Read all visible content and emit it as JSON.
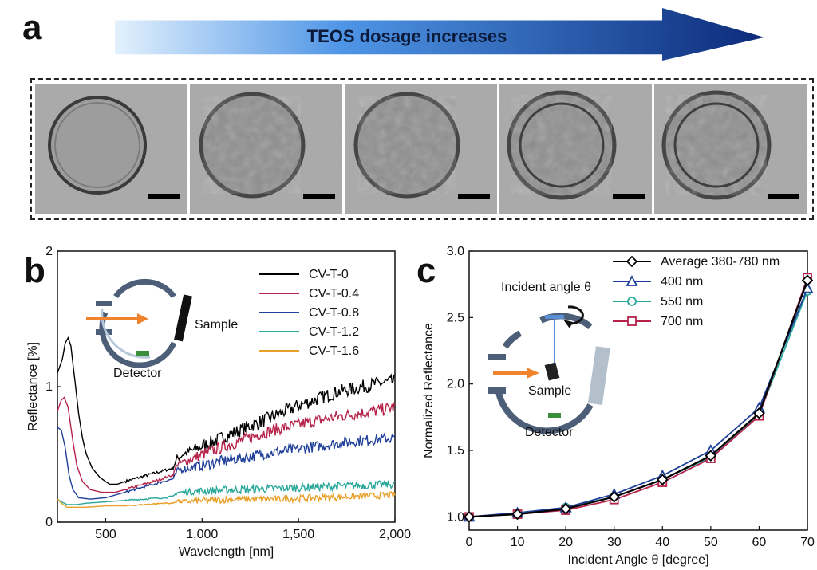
{
  "panel_a": {
    "letter": "a",
    "arrow_label": "TEOS dosage increases",
    "images": [
      {
        "name": "tem-image-cv-t-0",
        "texture": "smooth"
      },
      {
        "name": "tem-image-cv-t-0-4",
        "texture": "rough"
      },
      {
        "name": "tem-image-cv-t-0-8",
        "texture": "rough"
      },
      {
        "name": "tem-image-cv-t-1-2",
        "texture": "shell"
      },
      {
        "name": "tem-image-cv-t-1-6",
        "texture": "shell"
      }
    ]
  },
  "panel_b": {
    "letter": "b",
    "inset": {
      "sample_label": "Sample",
      "detector_label": "Detector"
    }
  },
  "panel_c": {
    "letter": "c",
    "inset": {
      "angle_label": "Incident angle θ",
      "sample_label": "Sample",
      "detector_label": "Detector"
    }
  },
  "chart_data": [
    {
      "id": "panel-b",
      "type": "line",
      "xlabel": "Wavelength [nm]",
      "ylabel": "Reflectance [%]",
      "xlim": [
        250,
        2000
      ],
      "ylim": [
        0,
        2
      ],
      "x_ticks": [
        500,
        1000,
        1500,
        2000
      ],
      "x_tick_labels": [
        "500",
        "1,000",
        "1,500",
        "2,000"
      ],
      "y_ticks": [
        0,
        1,
        2
      ],
      "y_tick_labels": [
        "0",
        "1",
        "2"
      ],
      "grid": false,
      "legend_position": "top-right",
      "series": [
        {
          "name": "CV-T-0",
          "color": "#000000",
          "points": [
            [
              250,
              1.1
            ],
            [
              275,
              1.2
            ],
            [
              290,
              1.32
            ],
            [
              305,
              1.36
            ],
            [
              320,
              1.3
            ],
            [
              340,
              1.05
            ],
            [
              360,
              0.8
            ],
            [
              380,
              0.62
            ],
            [
              400,
              0.5
            ],
            [
              430,
              0.4
            ],
            [
              470,
              0.33
            ],
            [
              520,
              0.28
            ],
            [
              560,
              0.28
            ],
            [
              600,
              0.3
            ],
            [
              700,
              0.34
            ],
            [
              800,
              0.38
            ],
            [
              850,
              0.4
            ],
            [
              870,
              0.47
            ],
            [
              900,
              0.5
            ],
            [
              1000,
              0.56
            ],
            [
              1100,
              0.62
            ],
            [
              1200,
              0.68
            ],
            [
              1300,
              0.74
            ],
            [
              1400,
              0.8
            ],
            [
              1500,
              0.86
            ],
            [
              1600,
              0.91
            ],
            [
              1700,
              0.96
            ],
            [
              1800,
              0.99
            ],
            [
              1900,
              1.02
            ],
            [
              2000,
              1.04
            ]
          ],
          "noise": 0.05
        },
        {
          "name": "CV-T-0.4",
          "color": "#b5234a",
          "points": [
            [
              250,
              0.82
            ],
            [
              270,
              0.9
            ],
            [
              285,
              0.92
            ],
            [
              305,
              0.85
            ],
            [
              330,
              0.6
            ],
            [
              350,
              0.42
            ],
            [
              380,
              0.3
            ],
            [
              420,
              0.24
            ],
            [
              480,
              0.22
            ],
            [
              550,
              0.22
            ],
            [
              650,
              0.26
            ],
            [
              750,
              0.3
            ],
            [
              850,
              0.35
            ],
            [
              870,
              0.43
            ],
            [
              900,
              0.44
            ],
            [
              1000,
              0.5
            ],
            [
              1100,
              0.55
            ],
            [
              1200,
              0.6
            ],
            [
              1300,
              0.65
            ],
            [
              1400,
              0.69
            ],
            [
              1500,
              0.72
            ],
            [
              1600,
              0.75
            ],
            [
              1700,
              0.78
            ],
            [
              1800,
              0.8
            ],
            [
              1900,
              0.82
            ],
            [
              2000,
              0.85
            ]
          ],
          "noise": 0.045
        },
        {
          "name": "CV-T-0.8",
          "color": "#1f3f99",
          "points": [
            [
              250,
              0.7
            ],
            [
              270,
              0.68
            ],
            [
              290,
              0.55
            ],
            [
              310,
              0.35
            ],
            [
              330,
              0.24
            ],
            [
              360,
              0.18
            ],
            [
              420,
              0.17
            ],
            [
              500,
              0.18
            ],
            [
              600,
              0.22
            ],
            [
              700,
              0.26
            ],
            [
              800,
              0.3
            ],
            [
              850,
              0.32
            ],
            [
              870,
              0.38
            ],
            [
              900,
              0.39
            ],
            [
              1000,
              0.42
            ],
            [
              1100,
              0.45
            ],
            [
              1200,
              0.47
            ],
            [
              1300,
              0.5
            ],
            [
              1400,
              0.52
            ],
            [
              1500,
              0.54
            ],
            [
              1600,
              0.56
            ],
            [
              1700,
              0.58
            ],
            [
              1800,
              0.6
            ],
            [
              1900,
              0.61
            ],
            [
              2000,
              0.62
            ]
          ],
          "noise": 0.04
        },
        {
          "name": "CV-T-1.2",
          "color": "#2aa89a",
          "points": [
            [
              250,
              0.17
            ],
            [
              270,
              0.15
            ],
            [
              300,
              0.13
            ],
            [
              350,
              0.13
            ],
            [
              400,
              0.14
            ],
            [
              500,
              0.15
            ],
            [
              600,
              0.16
            ],
            [
              700,
              0.17
            ],
            [
              800,
              0.18
            ],
            [
              850,
              0.19
            ],
            [
              870,
              0.22
            ],
            [
              900,
              0.22
            ],
            [
              1000,
              0.23
            ],
            [
              1200,
              0.24
            ],
            [
              1400,
              0.25
            ],
            [
              1600,
              0.26
            ],
            [
              1800,
              0.27
            ],
            [
              2000,
              0.28
            ]
          ],
          "noise": 0.03
        },
        {
          "name": "CV-T-1.6",
          "color": "#e8a02a",
          "points": [
            [
              250,
              0.17
            ],
            [
              270,
              0.14
            ],
            [
              300,
              0.11
            ],
            [
              350,
              0.11
            ],
            [
              400,
              0.11
            ],
            [
              500,
              0.12
            ],
            [
              600,
              0.12
            ],
            [
              700,
              0.13
            ],
            [
              800,
              0.14
            ],
            [
              850,
              0.14
            ],
            [
              870,
              0.16
            ],
            [
              900,
              0.15
            ],
            [
              1000,
              0.16
            ],
            [
              1200,
              0.17
            ],
            [
              1400,
              0.17
            ],
            [
              1600,
              0.18
            ],
            [
              1800,
              0.19
            ],
            [
              2000,
              0.2
            ]
          ],
          "noise": 0.025
        }
      ]
    },
    {
      "id": "panel-c",
      "type": "line",
      "xlabel": "Incident Angle θ [degree]",
      "ylabel": "Normalized Reflectance",
      "xlim": [
        0,
        70
      ],
      "ylim": [
        0.9,
        3.0
      ],
      "x_ticks": [
        0,
        10,
        20,
        30,
        40,
        50,
        60,
        70
      ],
      "x_tick_labels": [
        "0",
        "10",
        "20",
        "30",
        "40",
        "50",
        "60",
        "70"
      ],
      "y_ticks": [
        1.0,
        1.5,
        2.0,
        2.5,
        3.0
      ],
      "y_tick_labels": [
        "1.0",
        "1.5",
        "2.0",
        "2.5",
        "3.0"
      ],
      "grid": false,
      "legend_position": "top-right",
      "x": [
        0,
        10,
        20,
        30,
        40,
        50,
        60,
        70
      ],
      "series": [
        {
          "name": "Average 380-780 nm",
          "color": "#000000",
          "marker": "diamond",
          "values": [
            1.0,
            1.02,
            1.06,
            1.15,
            1.28,
            1.46,
            1.78,
            2.78
          ]
        },
        {
          "name": "400 nm",
          "color": "#1f3f99",
          "marker": "triangle",
          "values": [
            1.0,
            1.03,
            1.07,
            1.17,
            1.31,
            1.5,
            1.82,
            2.72
          ]
        },
        {
          "name": "550 nm",
          "color": "#2aa89a",
          "marker": "circle",
          "values": [
            1.0,
            1.02,
            1.07,
            1.15,
            1.28,
            1.45,
            1.77,
            2.7
          ]
        },
        {
          "name": "700 nm",
          "color": "#b5234a",
          "marker": "square",
          "values": [
            1.0,
            1.02,
            1.05,
            1.13,
            1.26,
            1.44,
            1.76,
            2.8
          ]
        }
      ]
    }
  ]
}
